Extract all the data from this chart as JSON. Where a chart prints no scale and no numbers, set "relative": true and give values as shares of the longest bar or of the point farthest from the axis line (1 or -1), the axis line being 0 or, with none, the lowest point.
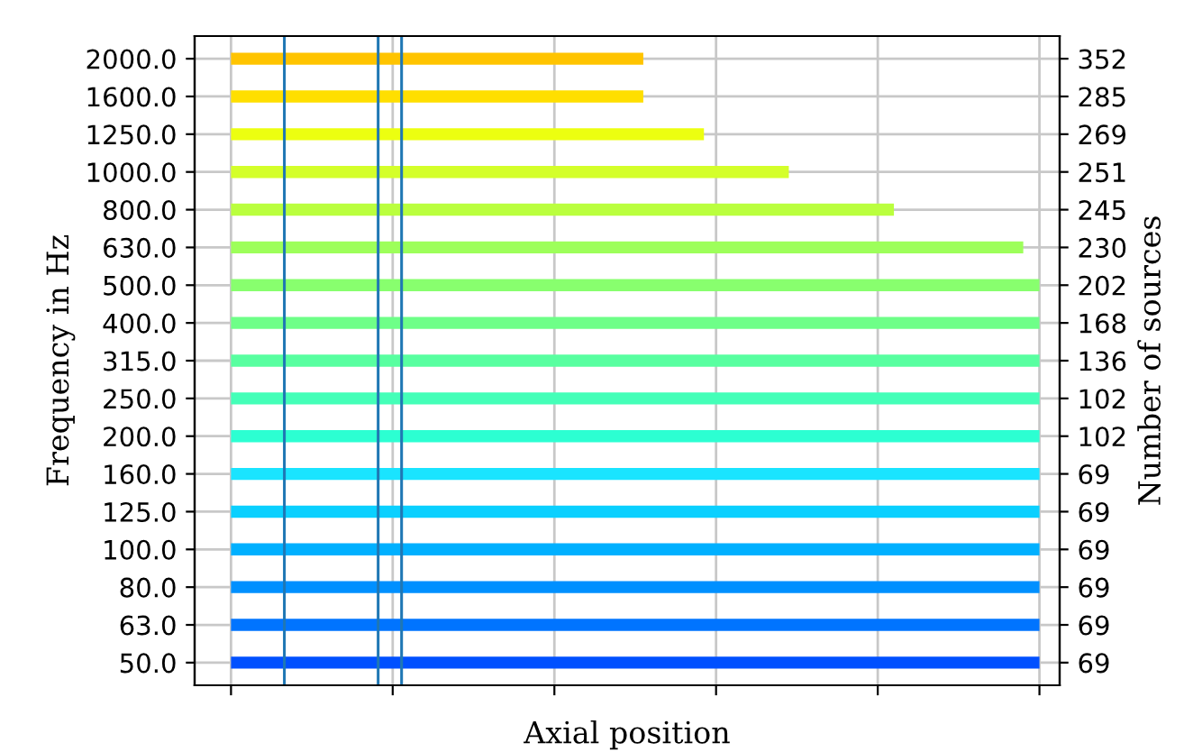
{
  "chart_data": {
    "type": "bar",
    "orientation": "horizontal",
    "relative": true,
    "xlabel": "Axial position",
    "ylabel": "Frequency in Hz",
    "y2label": "Number of sources",
    "categories": [
      "2000.0",
      "1600.0",
      "1250.0",
      "1000.0",
      "800.0",
      "630.0",
      "500.0",
      "400.0",
      "315.0",
      "250.0",
      "200.0",
      "160.0",
      "125.0",
      "100.0",
      "80.0",
      "63.0",
      "50.0"
    ],
    "y2_categories": [
      "352",
      "285",
      "269",
      "251",
      "245",
      "230",
      "202",
      "168",
      "136",
      "102",
      "102",
      "69",
      "69",
      "69",
      "69",
      "69",
      "69"
    ],
    "values": [
      0.51,
      0.51,
      0.585,
      0.69,
      0.82,
      0.98,
      1,
      1,
      1,
      1,
      1,
      1,
      1,
      1,
      1,
      1,
      1
    ],
    "colors": [
      "#ffc400",
      "#ffdf00",
      "#ecff10",
      "#d4ff2a",
      "#baff3e",
      "#9dff5a",
      "#88ff6e",
      "#6eff88",
      "#58ffa0",
      "#44ffb8",
      "#2cffd2",
      "#1ae4ff",
      "#0ad0ff",
      "#00b0ff",
      "#0090ff",
      "#0074ff",
      "#0050ff"
    ],
    "ref_lines": [
      {
        "axis": "x",
        "value": 0.066,
        "color": "#1f77b4"
      },
      {
        "axis": "x",
        "value": 0.182,
        "color": "#1f77b4"
      },
      {
        "axis": "x",
        "value": 0.211,
        "color": "#1f77b4"
      }
    ],
    "grid": true
  }
}
